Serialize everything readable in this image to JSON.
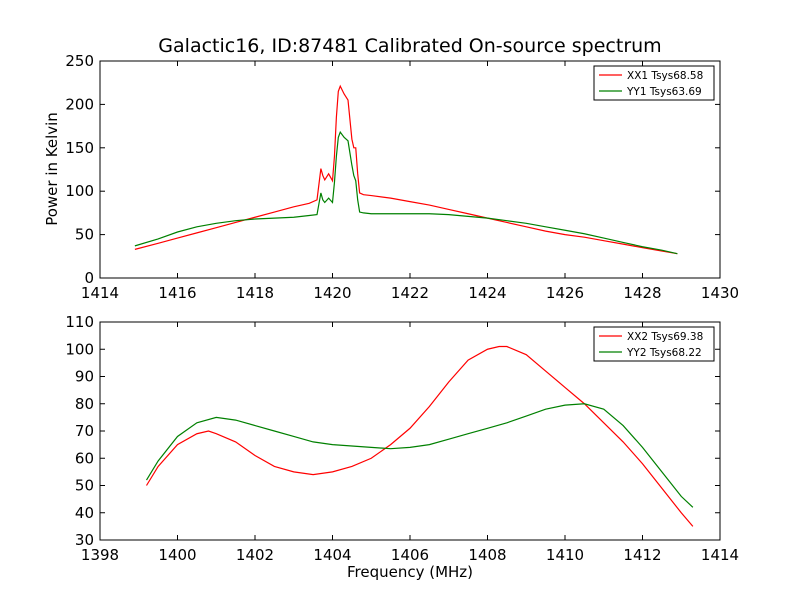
{
  "chart_data": [
    {
      "type": "line",
      "title": "Galactic16, ID:87481 Calibrated On-source spectrum",
      "xlabel": "",
      "ylabel": "Power in Kelvin",
      "xlim": [
        1414,
        1430
      ],
      "ylim": [
        0,
        250
      ],
      "xticks": [
        1414,
        1416,
        1418,
        1420,
        1422,
        1424,
        1426,
        1428,
        1430
      ],
      "yticks": [
        0,
        50,
        100,
        150,
        200,
        250
      ],
      "legend": "top-right",
      "grid": false,
      "series": [
        {
          "name": "XX1 Tsys68.58",
          "color": "#ff0000",
          "x": [
            1414.9,
            1415.5,
            1416,
            1416.5,
            1417,
            1417.5,
            1418,
            1418.5,
            1419,
            1419.4,
            1419.6,
            1419.7,
            1419.75,
            1419.8,
            1419.9,
            1420.0,
            1420.05,
            1420.1,
            1420.15,
            1420.2,
            1420.3,
            1420.4,
            1420.5,
            1420.55,
            1420.6,
            1420.65,
            1420.7,
            1420.8,
            1421,
            1421.5,
            1422,
            1422.5,
            1423,
            1423.5,
            1424,
            1424.5,
            1425,
            1425.5,
            1426,
            1426.5,
            1427,
            1427.5,
            1428,
            1428.5,
            1428.9
          ],
          "y": [
            33,
            40,
            46,
            52,
            58,
            64,
            70,
            76,
            82,
            86,
            90,
            126,
            118,
            113,
            120,
            112,
            140,
            185,
            215,
            221,
            212,
            205,
            160,
            150,
            150,
            120,
            98,
            96,
            95,
            92,
            88,
            84,
            79,
            74,
            69,
            64,
            59,
            54,
            50,
            47,
            43,
            39,
            35,
            31,
            28
          ]
        },
        {
          "name": "YY1 Tsys63.69",
          "color": "#008000",
          "x": [
            1414.9,
            1415.5,
            1416,
            1416.5,
            1417,
            1417.5,
            1418,
            1418.5,
            1419,
            1419.4,
            1419.6,
            1419.7,
            1419.75,
            1419.8,
            1419.9,
            1420.0,
            1420.05,
            1420.1,
            1420.15,
            1420.2,
            1420.3,
            1420.4,
            1420.5,
            1420.55,
            1420.6,
            1420.65,
            1420.7,
            1420.8,
            1421,
            1421.5,
            1422,
            1422.5,
            1423,
            1423.5,
            1424,
            1424.5,
            1425,
            1425.5,
            1426,
            1426.5,
            1427,
            1427.5,
            1428,
            1428.5,
            1428.9
          ],
          "y": [
            37,
            45,
            53,
            59,
            63,
            66,
            68,
            69,
            70,
            72,
            73,
            98,
            90,
            87,
            92,
            87,
            110,
            140,
            162,
            168,
            162,
            158,
            130,
            118,
            112,
            90,
            76,
            75,
            74,
            74,
            74,
            74,
            73,
            71,
            69,
            66,
            63,
            59,
            55,
            51,
            46,
            41,
            36,
            32,
            28
          ]
        }
      ]
    },
    {
      "type": "line",
      "title": "",
      "xlabel": "Frequency (MHz)",
      "ylabel": "",
      "xlim": [
        1398,
        1414
      ],
      "ylim": [
        30,
        110
      ],
      "xticks": [
        1398,
        1400,
        1402,
        1404,
        1406,
        1408,
        1410,
        1412,
        1414
      ],
      "yticks": [
        30,
        40,
        50,
        60,
        70,
        80,
        90,
        100,
        110
      ],
      "legend": "top-right",
      "grid": false,
      "series": [
        {
          "name": "XX2 Tsys69.38",
          "color": "#ff0000",
          "x": [
            1399.2,
            1399.5,
            1400,
            1400.5,
            1400.8,
            1401,
            1401.5,
            1402,
            1402.5,
            1403,
            1403.5,
            1404,
            1404.5,
            1405,
            1405.5,
            1406,
            1406.5,
            1407,
            1407.5,
            1408,
            1408.3,
            1408.5,
            1409,
            1409.5,
            1410,
            1410.5,
            1411,
            1411.5,
            1412,
            1412.5,
            1413,
            1413.3
          ],
          "y": [
            50,
            57,
            65,
            69,
            70,
            69,
            66,
            61,
            57,
            55,
            54,
            55,
            57,
            60,
            65,
            71,
            79,
            88,
            96,
            100,
            101,
            101,
            98,
            92,
            86,
            80,
            73,
            66,
            58,
            49,
            40,
            35
          ]
        },
        {
          "name": "YY2 Tsys68.22",
          "color": "#008000",
          "x": [
            1399.2,
            1399.5,
            1400,
            1400.5,
            1401,
            1401.5,
            1402,
            1402.5,
            1403,
            1403.5,
            1404,
            1404.5,
            1405,
            1405.5,
            1406,
            1406.5,
            1407,
            1407.5,
            1408,
            1408.5,
            1409,
            1409.5,
            1410,
            1410.5,
            1411,
            1411.5,
            1412,
            1412.5,
            1413,
            1413.3
          ],
          "y": [
            52,
            59,
            68,
            73,
            75,
            74,
            72,
            70,
            68,
            66,
            65,
            64.5,
            64,
            63.5,
            64,
            65,
            67,
            69,
            71,
            73,
            75.5,
            78,
            79.5,
            80,
            78,
            72,
            64,
            55,
            46,
            42
          ]
        }
      ]
    }
  ]
}
